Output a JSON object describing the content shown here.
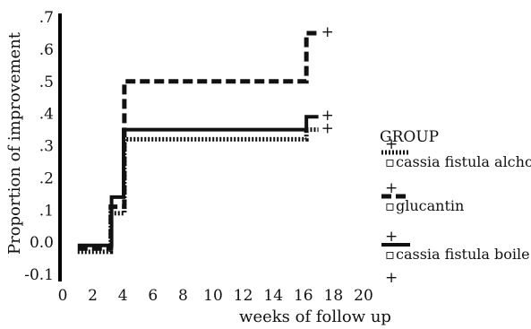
{
  "chart_data": {
    "type": "line",
    "step": true,
    "ylabel": "Proportion of improvement",
    "xlabel": "weeks of follow up",
    "xlim": [
      0,
      20
    ],
    "ylim": [
      -0.1,
      0.7
    ],
    "xticks": [
      "0",
      "2",
      "4",
      "6",
      "8",
      "10",
      "12",
      "14",
      "16",
      "18",
      "20"
    ],
    "xtick_values": [
      0,
      2,
      4,
      6,
      8,
      10,
      12,
      14,
      16,
      18,
      20
    ],
    "yticks": [
      ".7",
      ".6",
      ".5",
      ".4",
      ".3",
      ".2",
      ".1",
      "0.0",
      "-0.1"
    ],
    "ytick_values": [
      0.7,
      0.6,
      0.5,
      0.4,
      0.3,
      0.2,
      0.1,
      0.0,
      -0.1
    ],
    "grid": false,
    "legend": {
      "title": "GROUP",
      "position": "right",
      "censor_marker": "+",
      "event_marker": "▫"
    },
    "series": [
      {
        "name": "cassia fistula alcho",
        "style": "dotted",
        "color": "#111111",
        "x": [
          1,
          3,
          3.2,
          4,
          4.1,
          16,
          16.2,
          17
        ],
        "y": [
          -0.03,
          -0.03,
          0.09,
          0.09,
          0.32,
          0.32,
          0.35,
          0.35
        ]
      },
      {
        "name": "glucantin",
        "style": "dashed",
        "color": "#111111",
        "x": [
          1,
          3,
          3.2,
          4,
          4.1,
          16,
          16.2,
          17
        ],
        "y": [
          -0.02,
          -0.02,
          0.11,
          0.11,
          0.5,
          0.5,
          0.65,
          0.65
        ]
      },
      {
        "name": "cassia fistula boile",
        "style": "solid",
        "color": "#111111",
        "x": [
          1,
          3.05,
          3.25,
          3.95,
          4.05,
          16,
          16.2,
          17
        ],
        "y": [
          -0.01,
          -0.01,
          0.14,
          0.14,
          0.35,
          0.35,
          0.39,
          0.39
        ]
      }
    ]
  }
}
